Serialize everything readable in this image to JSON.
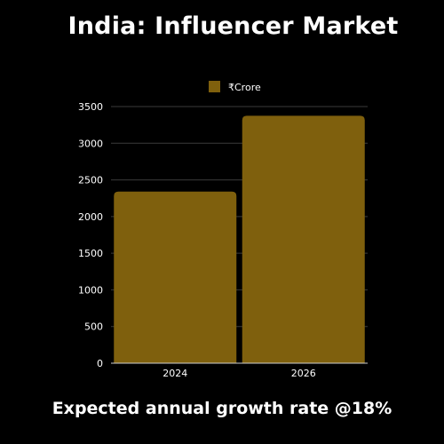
{
  "title": "India: Influencer Market",
  "footer": "Expected annual growth rate @18%",
  "colors": {
    "background": "#000000",
    "bar": "#7f600d",
    "grid": "#3a3a3a",
    "axis": "#cfcfcf",
    "text": "#ffffff"
  },
  "chart_data": {
    "type": "bar",
    "title": "India: Influencer Market",
    "categories": [
      "2024",
      "2026"
    ],
    "series": [
      {
        "name": "₹Crore",
        "values": [
          2340,
          3375
        ]
      }
    ],
    "ylim": [
      0,
      3500
    ],
    "yticks": [
      0,
      500,
      1000,
      1500,
      2000,
      2500,
      3000,
      3500
    ],
    "grid": true,
    "legend": "top-center"
  }
}
